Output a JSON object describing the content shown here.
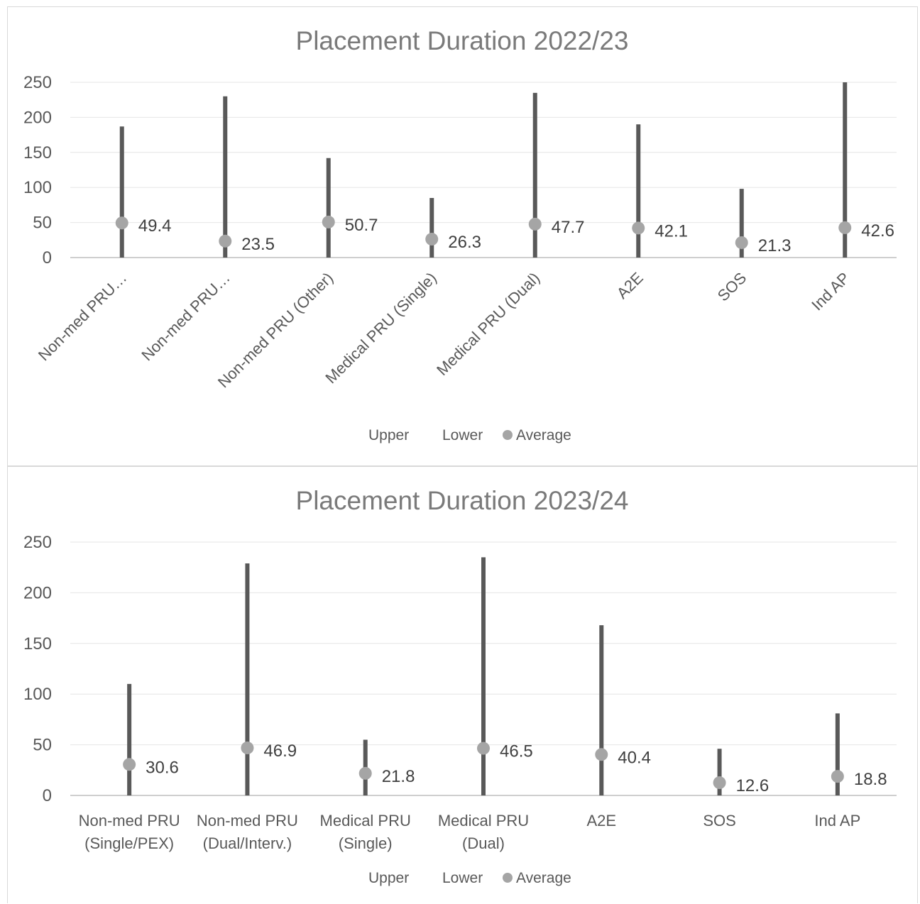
{
  "chart_data": [
    {
      "type": "stock",
      "title": "Placement Duration 2022/23",
      "categories": [
        "Non-med PRU…",
        "Non-med PRU…",
        "Non-med PRU (Other)",
        "Medical PRU (Single)",
        "Medical PRU (Dual)",
        "A2E",
        "SOS",
        "Ind AP"
      ],
      "series": [
        {
          "name": "Upper",
          "values": [
            187,
            230,
            142,
            85,
            235,
            190,
            98,
            250
          ]
        },
        {
          "name": "Lower",
          "values": [
            0,
            0,
            0,
            0,
            0,
            0,
            0,
            0
          ]
        },
        {
          "name": "Average",
          "values": [
            49.4,
            23.5,
            50.7,
            26.3,
            47.7,
            42.1,
            21.3,
            42.6
          ]
        }
      ],
      "data_labels": [
        "49.4",
        "23.5",
        "50.7",
        "26.3",
        "47.7",
        "42.1",
        "21.3",
        "42.6"
      ],
      "yticks": [
        "0",
        "50",
        "100",
        "150",
        "200",
        "250"
      ],
      "ylim": [
        0,
        250
      ],
      "grid": true,
      "legend_position": "bottom",
      "category_label_rotation": "diagonal"
    },
    {
      "type": "stock",
      "title": "Placement Duration 2023/24",
      "categories": [
        [
          "Non-med PRU",
          "(Single/PEX)"
        ],
        [
          "Non-med PRU",
          "(Dual/Interv.)"
        ],
        [
          "Medical PRU",
          "(Single)"
        ],
        [
          "Medical PRU",
          "(Dual)"
        ],
        [
          "A2E"
        ],
        [
          "SOS"
        ],
        [
          "Ind AP"
        ]
      ],
      "series": [
        {
          "name": "Upper",
          "values": [
            110,
            229,
            55,
            235,
            168,
            46,
            81
          ]
        },
        {
          "name": "Lower",
          "values": [
            0,
            0,
            0,
            0,
            0,
            0,
            0
          ]
        },
        {
          "name": "Average",
          "values": [
            30.6,
            46.9,
            21.8,
            46.5,
            40.4,
            12.6,
            18.8
          ]
        }
      ],
      "data_labels": [
        "30.6",
        "46.9",
        "21.8",
        "46.5",
        "40.4",
        "12.6",
        "18.8"
      ],
      "yticks": [
        "0",
        "50",
        "100",
        "150",
        "200",
        "250"
      ],
      "ylim": [
        0,
        250
      ],
      "grid": true,
      "legend_position": "bottom",
      "category_label_rotation": "horizontal"
    }
  ],
  "colors": {
    "bar": "#595959",
    "marker": "#a5a5a5",
    "grid": "#e6e6e6",
    "axis": "#bfbfbf"
  }
}
